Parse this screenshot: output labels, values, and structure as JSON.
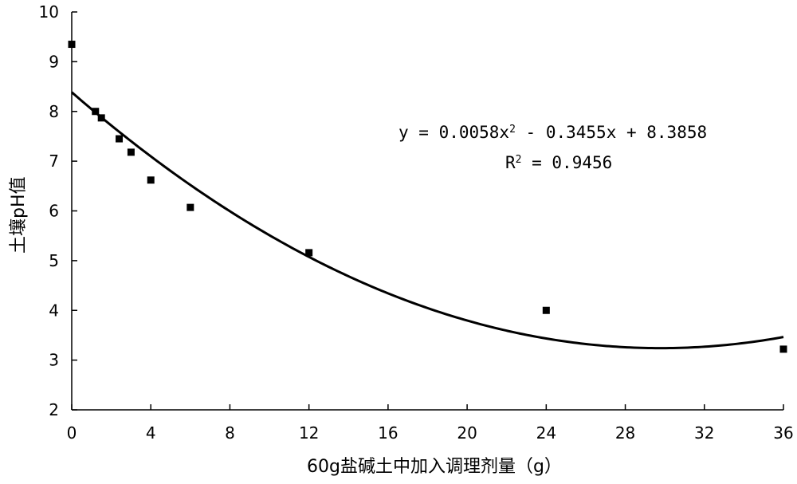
{
  "chart_data": {
    "type": "scatter",
    "title": "",
    "xlabel": "60g盐碱土中加入调理剂量（g）",
    "ylabel": "土壤pH值",
    "xlim": [
      0,
      36
    ],
    "ylim": [
      2,
      10
    ],
    "xticks": [
      0,
      4,
      8,
      12,
      16,
      20,
      24,
      28,
      32,
      36
    ],
    "yticks": [
      2,
      3,
      4,
      5,
      6,
      7,
      8,
      9,
      10
    ],
    "grid": false,
    "legend": "none",
    "series": [
      {
        "marker": "square",
        "color": "#000000",
        "points": [
          {
            "x": 0,
            "y": 9.35
          },
          {
            "x": 1.2,
            "y": 8.0
          },
          {
            "x": 1.5,
            "y": 7.87
          },
          {
            "x": 2.4,
            "y": 7.45
          },
          {
            "x": 3.0,
            "y": 7.18
          },
          {
            "x": 4.0,
            "y": 6.62
          },
          {
            "x": 6.0,
            "y": 6.07
          },
          {
            "x": 12.0,
            "y": 5.16
          },
          {
            "x": 24.0,
            "y": 4.0
          },
          {
            "x": 36.0,
            "y": 3.22
          }
        ]
      }
    ],
    "trendline": {
      "type": "polynomial",
      "coefficients": {
        "a": 0.0058,
        "b": -0.3455,
        "c": 8.3858
      },
      "equation": "y = 0.0058x",
      "equation_sup": "2",
      "equation_rest": " - 0.3455x + 8.3858",
      "r2_label": "R",
      "r2_sup": "2",
      "r2_rest": " = 0.9456"
    }
  }
}
